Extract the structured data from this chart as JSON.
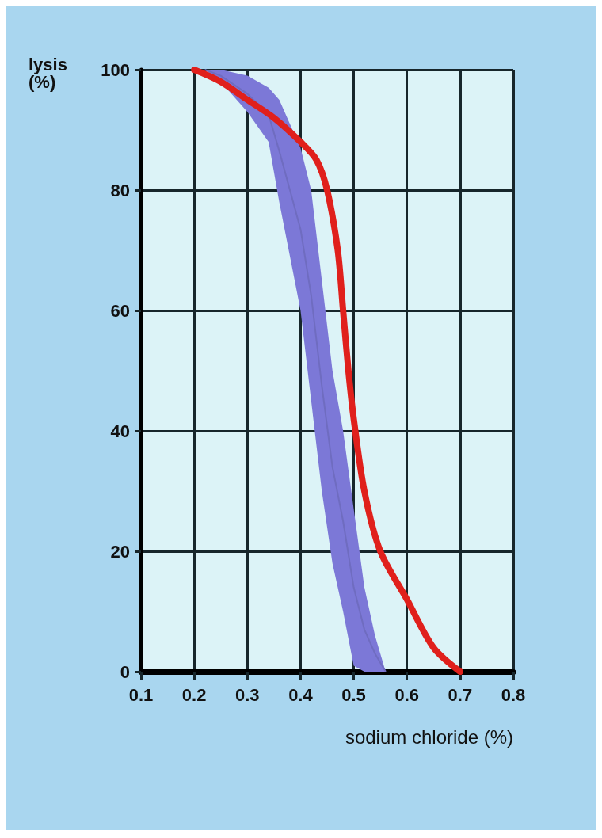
{
  "chart_data": {
    "type": "line",
    "xlabel": "sodium chloride (%)",
    "ylabel": "lysis (%)",
    "xlim": [
      0.1,
      0.8
    ],
    "xticks": [
      0.1,
      0.2,
      0.3,
      0.4,
      0.5,
      0.6,
      0.7,
      0.8
    ],
    "ylim": [
      0,
      100
    ],
    "yticks": [
      0,
      20,
      40,
      60,
      80,
      100
    ],
    "grid": true,
    "marker": "none",
    "line_style": "solid",
    "series": [
      {
        "color": "#6f6cc0",
        "x": [
          0.22,
          0.25,
          0.3,
          0.34,
          0.36,
          0.38,
          0.4,
          0.42,
          0.44,
          0.46,
          0.48,
          0.5,
          0.52,
          0.54,
          0.56
        ],
        "values": [
          100,
          99,
          96,
          92.5,
          86.5,
          80,
          73.5,
          62.5,
          47.5,
          34,
          25,
          14,
          7,
          3,
          0
        ],
        "lower": [
          100,
          98,
          93,
          88,
          78,
          69,
          60,
          45,
          30,
          18,
          10,
          1,
          0,
          0,
          0
        ],
        "upper": [
          100,
          100,
          99,
          97,
          95,
          91,
          87,
          80,
          65,
          50,
          40,
          27,
          14,
          6,
          0
        ]
      },
      {
        "color": "#e0201c",
        "x": [
          0.2,
          0.25,
          0.3,
          0.35,
          0.4,
          0.43,
          0.45,
          0.47,
          0.48,
          0.49,
          0.5,
          0.52,
          0.55,
          0.6,
          0.65,
          0.7
        ],
        "values": [
          100,
          98,
          95,
          92,
          88,
          85,
          80,
          70,
          60,
          50,
          42,
          30,
          20,
          12,
          4,
          0
        ]
      }
    ]
  }
}
